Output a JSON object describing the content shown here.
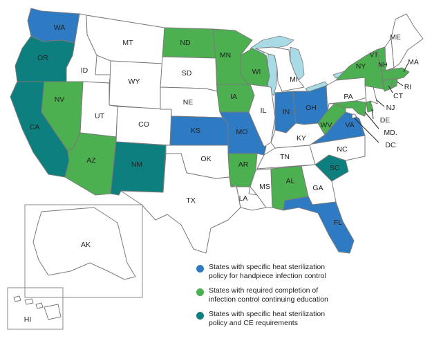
{
  "colors": {
    "heat_policy": "#2e7bc4",
    "ce_required": "#4caf50",
    "both": "#0e7f7f",
    "none": "#ffffff",
    "lakes": "#a9dbe6",
    "border": "#7a7a7a"
  },
  "states": {
    "WA": {
      "label": "WA",
      "category": "heat_policy"
    },
    "OR": {
      "label": "OR",
      "category": "both"
    },
    "CA": {
      "label": "CA",
      "category": "both"
    },
    "NV": {
      "label": "NV",
      "category": "ce_required"
    },
    "AZ": {
      "label": "AZ",
      "category": "ce_required"
    },
    "NM": {
      "label": "NM",
      "category": "both"
    },
    "ND": {
      "label": "ND",
      "category": "ce_required"
    },
    "MN": {
      "label": "MN",
      "category": "ce_required"
    },
    "WI": {
      "label": "WI",
      "category": "ce_required"
    },
    "IA": {
      "label": "IA",
      "category": "ce_required"
    },
    "KS": {
      "label": "KS",
      "category": "heat_policy"
    },
    "MO": {
      "label": "MO",
      "category": "heat_policy"
    },
    "AR": {
      "label": "AR",
      "category": "ce_required"
    },
    "IN": {
      "label": "IN",
      "category": "heat_policy"
    },
    "OH": {
      "label": "OH",
      "category": "heat_policy"
    },
    "WV": {
      "label": "WV",
      "category": "ce_required"
    },
    "VA": {
      "label": "VA",
      "category": "heat_policy"
    },
    "AL": {
      "label": "AL",
      "category": "ce_required"
    },
    "SC": {
      "label": "SC",
      "category": "both"
    },
    "FL": {
      "label": "FL",
      "category": "heat_policy"
    },
    "NY": {
      "label": "NY",
      "category": "ce_required"
    },
    "MA": {
      "label": "MA",
      "category": "ce_required"
    },
    "RI": {
      "label": "RI",
      "category": "ce_required"
    },
    "CT": {
      "label": "CT",
      "category": "ce_required"
    },
    "DE": {
      "label": "DE",
      "category": "ce_required"
    },
    "MD": {
      "label": "MD.",
      "category": "ce_required"
    },
    "VT": {
      "label": "VT",
      "category": "ce_required"
    },
    "ID": {
      "label": "ID",
      "category": "none"
    },
    "MT": {
      "label": "MT",
      "category": "none"
    },
    "WY": {
      "label": "WY",
      "category": "none"
    },
    "UT": {
      "label": "UT",
      "category": "none"
    },
    "CO": {
      "label": "CO",
      "category": "none"
    },
    "SD": {
      "label": "SD",
      "category": "none"
    },
    "NE": {
      "label": "NE",
      "category": "none"
    },
    "OK": {
      "label": "OK",
      "category": "none"
    },
    "TX": {
      "label": "TX",
      "category": "none"
    },
    "LA": {
      "label": "LA",
      "category": "none"
    },
    "MS": {
      "label": "MS",
      "category": "none"
    },
    "IL": {
      "label": "IL",
      "category": "none"
    },
    "MI": {
      "label": "MI",
      "category": "none"
    },
    "KY": {
      "label": "KY",
      "category": "none"
    },
    "TN": {
      "label": "TN",
      "category": "none"
    },
    "GA": {
      "label": "GA",
      "category": "none"
    },
    "NC": {
      "label": "NC",
      "category": "none"
    },
    "PA": {
      "label": "PA",
      "category": "none"
    },
    "NJ": {
      "label": "NJ",
      "category": "none"
    },
    "NH": {
      "label": "NH",
      "category": "none"
    },
    "ME": {
      "label": "ME",
      "category": "none"
    },
    "DC": {
      "label": "DC",
      "category": "none"
    },
    "AK": {
      "label": "AK",
      "category": "none"
    },
    "HI": {
      "label": "HI",
      "category": "none"
    }
  },
  "legend": [
    {
      "category": "heat_policy",
      "text": "States with specific heat sterilization policy for handpiece infection control"
    },
    {
      "category": "ce_required",
      "text": "States with required completion of infection control continuing education"
    },
    {
      "category": "both",
      "text": "States with specific heat sterilization policy and CE requirements"
    }
  ]
}
